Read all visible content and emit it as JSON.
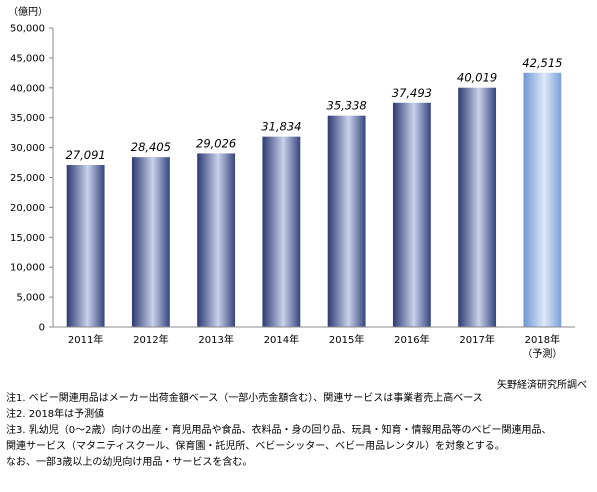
{
  "chart_data": {
    "type": "bar",
    "unit_label": "（億円）",
    "categories": [
      "2011年",
      "2012年",
      "2013年",
      "2014年",
      "2015年",
      "2016年",
      "2017年",
      "2018年"
    ],
    "category_sub": [
      "",
      "",
      "",
      "",
      "",
      "",
      "",
      "（予測）"
    ],
    "values": [
      27091,
      28405,
      29026,
      31834,
      35338,
      37493,
      40019,
      42515
    ],
    "value_labels": [
      "27,091",
      "28,405",
      "29,026",
      "31,834",
      "35,338",
      "37,493",
      "40,019",
      "42,515"
    ],
    "forecast_index": 7,
    "ylim": [
      0,
      50000
    ],
    "yticks": [
      0,
      5000,
      10000,
      15000,
      20000,
      25000,
      30000,
      35000,
      40000,
      45000,
      50000
    ],
    "ytick_labels": [
      "0",
      "5,000",
      "10,000",
      "15,000",
      "20,000",
      "25,000",
      "30,000",
      "35,000",
      "40,000",
      "45,000",
      "50,000"
    ],
    "grid": false,
    "colors": {
      "bar_dark": "#2c3a72",
      "bar_mid": "#c9d2ea",
      "forecast_dark": "#6f97d4",
      "forecast_mid": "#dde8f8",
      "axis": "#888888"
    }
  },
  "source": "矢野経済研究所調べ",
  "notes": [
    "注1. ベビー関連用品はメーカー出荷金額ベース（一部小売金額含む）、関連サービスは事業者売上高ベース",
    "注2. 2018年は予測値",
    "注3. 乳幼児（0〜2歳）向けの出産・育児用品や食品、衣料品・身の回り品、玩具・知育・情報用品等のベビー関連用品、",
    "関連サービス（マタニティスクール、保育園・託児所、ベビーシッター、ベビー用品レンタル）を対象とする。",
    "なお、一部3歳以上の幼児向け用品・サービスを含む。"
  ]
}
